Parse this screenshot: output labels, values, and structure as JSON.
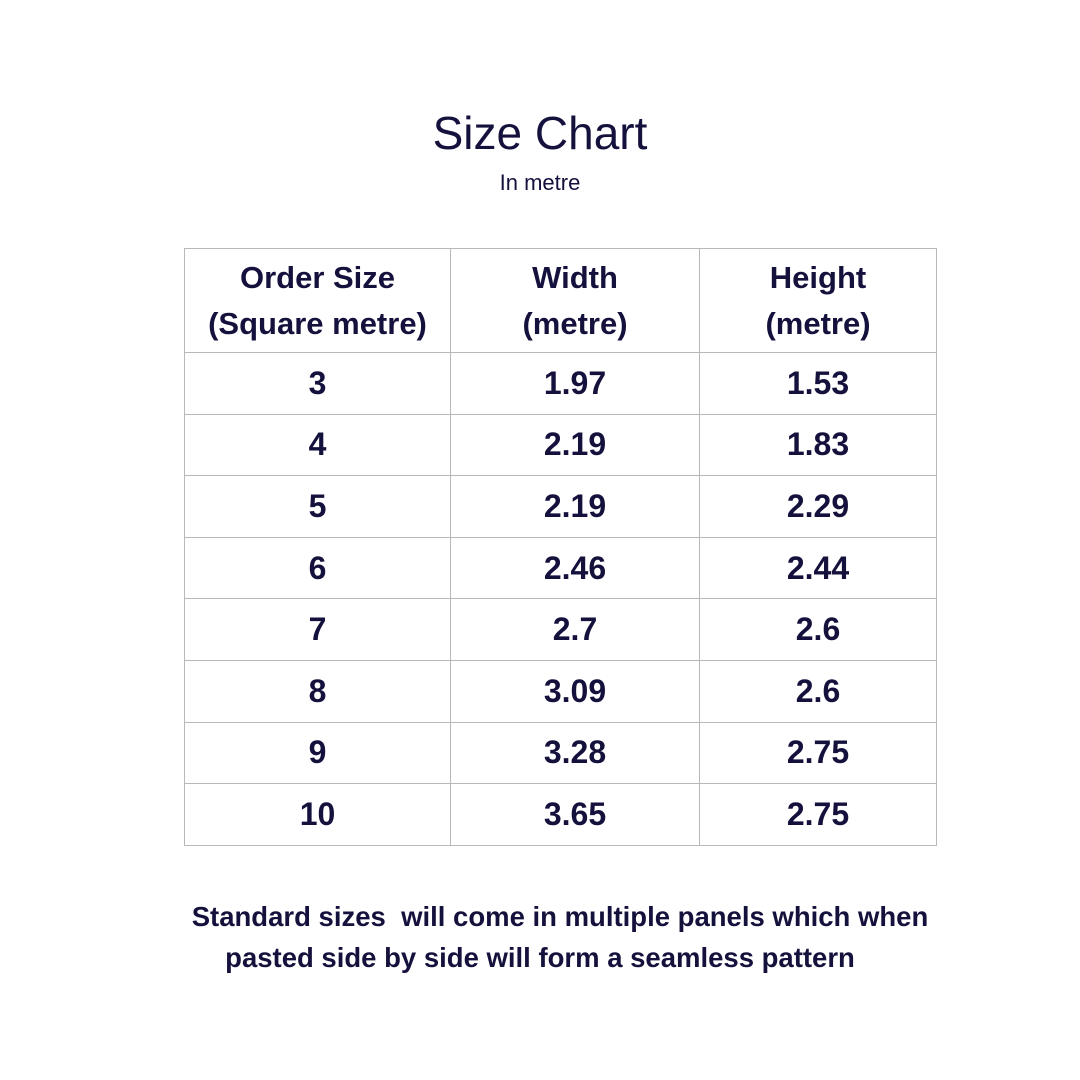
{
  "header": {
    "title": "Size Chart",
    "subtitle": "In metre"
  },
  "table": {
    "columns": [
      {
        "line1": "Order Size",
        "line2": "(Square metre)"
      },
      {
        "line1": "Width",
        "line2": "(metre)"
      },
      {
        "line1": "Height",
        "line2": "(metre)"
      }
    ],
    "rows": [
      [
        "3",
        "1.97",
        "1.53"
      ],
      [
        "4",
        "2.19",
        "1.83"
      ],
      [
        "5",
        "2.19",
        "2.29"
      ],
      [
        "6",
        "2.46",
        "2.44"
      ],
      [
        "7",
        "2.7",
        "2.6"
      ],
      [
        "8",
        "3.09",
        "2.6"
      ],
      [
        "9",
        "3.28",
        "2.75"
      ],
      [
        "10",
        "3.65",
        "2.75"
      ]
    ]
  },
  "footer": {
    "line1": "Standard sizes  will come in multiple panels which when",
    "line2": "pasted side by side will form a seamless pattern"
  },
  "colors": {
    "text": "#15113d",
    "border": "#b8b8b8",
    "background": "#ffffff"
  }
}
